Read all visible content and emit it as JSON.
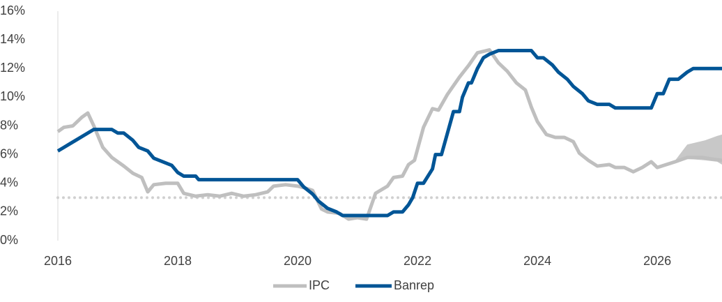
{
  "chart_data": {
    "type": "line",
    "xlim": [
      2016,
      2027.08
    ],
    "ylim": [
      0,
      16
    ],
    "xticks": [
      2016,
      2018,
      2020,
      2022,
      2024,
      2026
    ],
    "yticks": [
      {
        "value": 0,
        "label": "0%"
      },
      {
        "value": 2,
        "label": "2%"
      },
      {
        "value": 4,
        "label": "4%"
      },
      {
        "value": 6,
        "label": "6%"
      },
      {
        "value": 8,
        "label": "8%"
      },
      {
        "value": 10,
        "label": "10%"
      },
      {
        "value": 12,
        "label": "12%"
      },
      {
        "value": 14,
        "label": "14%"
      },
      {
        "value": 16,
        "label": "16%"
      }
    ],
    "reference_line": 3,
    "reference_color": "#d0d0d0",
    "legend": "bottom",
    "forecast_band": {
      "color": "#c8c8c8",
      "x": [
        2026.3,
        2026.5,
        2026.8,
        2027.0,
        2027.08
      ],
      "lower": [
        5.5,
        5.7,
        5.6,
        5.5,
        5.3
      ],
      "upper": [
        5.6,
        6.7,
        7.0,
        7.3,
        7.4
      ]
    },
    "series": [
      {
        "name": "IPC",
        "color": "#bfbfbf",
        "x": [
          2016.0,
          2016.1,
          2016.25,
          2016.4,
          2016.5,
          2016.6,
          2016.75,
          2016.9,
          2017.1,
          2017.25,
          2017.4,
          2017.5,
          2017.6,
          2017.8,
          2018.0,
          2018.1,
          2018.3,
          2018.5,
          2018.7,
          2018.9,
          2019.1,
          2019.3,
          2019.5,
          2019.6,
          2019.8,
          2020.0,
          2020.1,
          2020.25,
          2020.4,
          2020.5,
          2020.7,
          2020.85,
          2021.0,
          2021.15,
          2021.3,
          2021.5,
          2021.6,
          2021.75,
          2021.85,
          2021.95,
          2022.1,
          2022.25,
          2022.35,
          2022.5,
          2022.7,
          2022.85,
          2023.0,
          2023.2,
          2023.35,
          2023.5,
          2023.65,
          2023.8,
          2023.9,
          2024.0,
          2024.15,
          2024.3,
          2024.45,
          2024.6,
          2024.7,
          2024.85,
          2025.0,
          2025.2,
          2025.3,
          2025.45,
          2025.6,
          2025.75,
          2025.9,
          2026.0,
          2026.15,
          2026.3,
          2026.5,
          2026.75,
          2026.9,
          2027.08
        ],
        "values": [
          7.6,
          7.9,
          8.0,
          8.6,
          8.9,
          8.0,
          6.5,
          5.8,
          5.2,
          4.7,
          4.4,
          3.4,
          3.9,
          4.0,
          4.0,
          3.3,
          3.1,
          3.2,
          3.1,
          3.3,
          3.1,
          3.2,
          3.4,
          3.8,
          3.9,
          3.8,
          3.7,
          3.5,
          2.2,
          2.0,
          1.9,
          1.5,
          1.6,
          1.5,
          3.3,
          3.8,
          4.4,
          4.5,
          5.3,
          5.6,
          7.9,
          9.2,
          9.1,
          10.2,
          11.4,
          12.2,
          13.1,
          13.3,
          12.4,
          11.8,
          11.0,
          10.5,
          9.3,
          8.3,
          7.4,
          7.2,
          7.2,
          6.9,
          6.1,
          5.6,
          5.2,
          5.3,
          5.1,
          5.1,
          4.8,
          5.1,
          5.5,
          5.1,
          5.3,
          5.5,
          5.8,
          5.8,
          5.7,
          5.6
        ]
      },
      {
        "name": "Banrep",
        "color": "#005596",
        "x": [
          2016.0,
          2016.1,
          2016.2,
          2016.3,
          2016.5,
          2016.6,
          2016.9,
          2017.0,
          2017.1,
          2017.25,
          2017.35,
          2017.5,
          2017.6,
          2017.75,
          2017.9,
          2018.0,
          2018.1,
          2018.3,
          2018.35,
          2020.0,
          2020.1,
          2020.25,
          2020.35,
          2020.5,
          2020.65,
          2020.75,
          2021.3,
          2021.5,
          2021.6,
          2021.75,
          2021.85,
          2021.92,
          2022.0,
          2022.1,
          2022.25,
          2022.3,
          2022.4,
          2022.5,
          2022.6,
          2022.7,
          2022.75,
          2022.85,
          2022.9,
          2023.0,
          2023.1,
          2023.2,
          2023.35,
          2023.9,
          2024.0,
          2024.1,
          2024.25,
          2024.35,
          2024.5,
          2024.6,
          2024.75,
          2024.85,
          2025.0,
          2025.2,
          2025.3,
          2025.9,
          2026.0,
          2026.1,
          2026.2,
          2026.35,
          2026.5,
          2026.6,
          2027.08
        ],
        "values": [
          6.25,
          6.5,
          6.75,
          7.0,
          7.5,
          7.75,
          7.75,
          7.5,
          7.5,
          7.0,
          6.5,
          6.25,
          5.75,
          5.5,
          5.25,
          4.75,
          4.5,
          4.5,
          4.25,
          4.25,
          3.75,
          3.25,
          2.75,
          2.25,
          2.0,
          1.75,
          1.75,
          1.75,
          2.0,
          2.0,
          2.5,
          3.0,
          4.0,
          4.0,
          5.0,
          6.0,
          6.0,
          7.5,
          9.0,
          9.0,
          10.0,
          11.0,
          11.0,
          12.0,
          12.75,
          13.0,
          13.25,
          13.25,
          12.75,
          12.75,
          12.25,
          11.75,
          11.25,
          10.75,
          10.25,
          9.75,
          9.5,
          9.5,
          9.25,
          9.25,
          10.25,
          10.25,
          11.25,
          11.25,
          11.75,
          12.0,
          12.0
        ]
      }
    ]
  }
}
